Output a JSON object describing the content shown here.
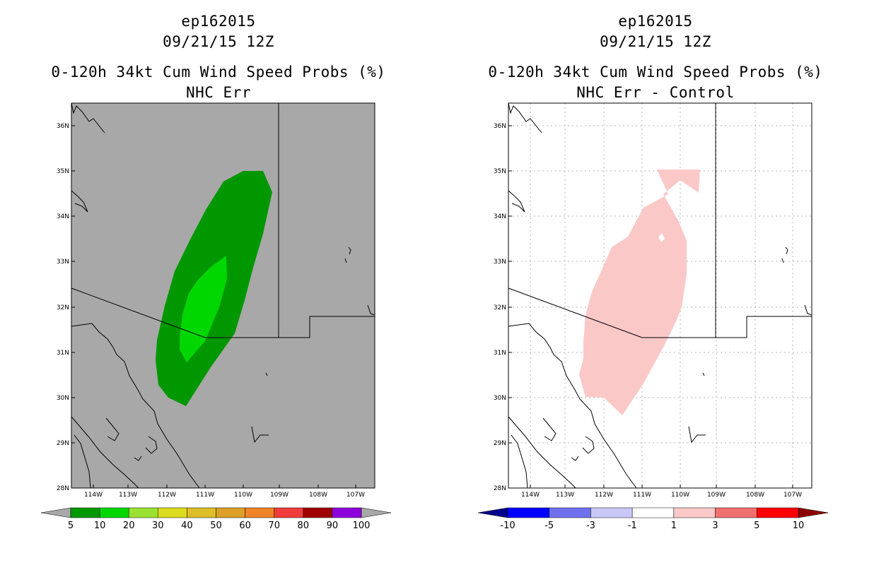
{
  "panels": [
    {
      "title": {
        "storm_id": "ep162015",
        "datetime": "09/21/15 12Z",
        "product": "0-120h 34kt Cum Wind Speed Probs (%)",
        "subtitle": "NHC Err"
      },
      "map": {
        "background": "#a8a8a8",
        "gridlines": false,
        "lat_labels": [
          "36N",
          "35N",
          "34N",
          "33N",
          "32N",
          "31N",
          "30N",
          "29N",
          "28N"
        ],
        "lon_labels": [
          "114W",
          "113W",
          "112W",
          "111W",
          "110W",
          "109W",
          "108W",
          "107W"
        ],
        "contour_fills": [
          {
            "level": "5-10",
            "color": "#009700"
          },
          {
            "level": "10-20",
            "color": "#00d700"
          }
        ]
      },
      "colorbar": {
        "colors": [
          "#009700",
          "#00d700",
          "#9be132",
          "#dcdc1e",
          "#dcbe28",
          "#dca028",
          "#f08228",
          "#f03c3c",
          "#a00000",
          "#8c00dc"
        ],
        "labels": [
          "5",
          "10",
          "20",
          "30",
          "40",
          "50",
          "60",
          "70",
          "80",
          "90",
          "100"
        ],
        "end_arrow_color": "#a8a8a8"
      }
    },
    {
      "title": {
        "storm_id": "ep162015",
        "datetime": "09/21/15 12Z",
        "product": "0-120h 34kt Cum Wind Speed Probs (%)",
        "subtitle": "NHC Err - Control"
      },
      "map": {
        "background": "#ffffff",
        "gridlines": true,
        "lat_labels": [
          "36N",
          "35N",
          "34N",
          "33N",
          "32N",
          "31N",
          "30N",
          "29N",
          "28N"
        ],
        "lon_labels": [
          "114W",
          "113W",
          "112W",
          "111W",
          "110W",
          "109W",
          "108W",
          "107W"
        ],
        "contour_fills": [
          {
            "level": "1-3",
            "color": "#fbc8c8"
          }
        ]
      },
      "colorbar": {
        "colors": [
          "#0000ff",
          "#7070ee",
          "#c8c8f8",
          "#ffffff",
          "#fbc8c8",
          "#f07070",
          "#ff0000"
        ],
        "labels": [
          "-10",
          "-5",
          "-3",
          "-1",
          "1",
          "3",
          "5",
          "10"
        ],
        "left_arrow_color": "#00008c",
        "right_arrow_color": "#8c0000"
      }
    }
  ]
}
